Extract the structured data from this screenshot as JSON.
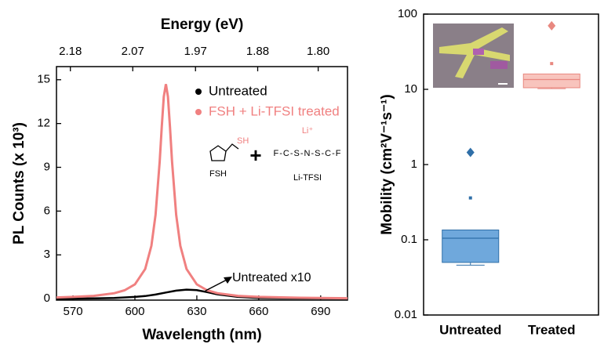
{
  "chart_data": [
    {
      "type": "line",
      "x_label": "Wavelength (nm)",
      "y_label": "PL Counts (x 10³)",
      "x2_label": "Energy (eV)",
      "xlim": [
        562,
        703
      ],
      "ylim": [
        -0.1,
        15.9
      ],
      "xticks": [
        570,
        600,
        630,
        660,
        690
      ],
      "yticks": [
        0,
        3,
        6,
        9,
        12,
        15
      ],
      "x2ticks": [
        2.18,
        2.07,
        1.97,
        1.88,
        {
          "value": 1.8,
          "label": "1.80"
        }
      ],
      "legend": "upper right",
      "series": [
        {
          "name": "Untreated",
          "color": "#000000",
          "x": [
            562,
            570,
            580,
            590,
            600,
            605,
            610,
            615,
            620,
            625,
            630,
            635,
            640,
            650,
            660,
            680,
            703
          ],
          "values": [
            0,
            0,
            0.02,
            0.05,
            0.12,
            0.18,
            0.28,
            0.42,
            0.55,
            0.62,
            0.58,
            0.45,
            0.3,
            0.12,
            0.05,
            0.02,
            0.01
          ]
        },
        {
          "name": "FSH + Li-TFSI treated",
          "color": "#f08080",
          "x": [
            562,
            570,
            580,
            590,
            595,
            600,
            605,
            608,
            610,
            612,
            613,
            614,
            615,
            616,
            617,
            618,
            620,
            622,
            625,
            630,
            635,
            640,
            650,
            660,
            680,
            703
          ],
          "values": [
            0.08,
            0.12,
            0.19,
            0.37,
            0.57,
            0.98,
            2.03,
            3.62,
            5.74,
            9.41,
            11.76,
            13.84,
            14.7,
            13.84,
            11.76,
            9.41,
            5.74,
            3.62,
            2.03,
            0.98,
            0.57,
            0.37,
            0.19,
            0.12,
            0.06,
            0.03
          ]
        }
      ],
      "annotations": [
        "Untreated x10",
        "SH",
        "FSH",
        "+",
        "Li⁺",
        "F-C-S-N-S-C-F",
        "Li-TFSI"
      ]
    },
    {
      "type": "box",
      "y_label": "Mobility (cm²V⁻¹s⁻¹)",
      "ylim": [
        0.01,
        100
      ],
      "log_scale": true,
      "yticks": [
        0.01,
        0.1,
        1,
        10,
        100
      ],
      "categories": [
        "Untreated",
        "Treated"
      ],
      "boxes": [
        {
          "color": "#6fa8dc",
          "edge": "#2f6fa8",
          "whisker_low": 0.046,
          "q1": 0.05,
          "median": 0.105,
          "q3": 0.135,
          "whisker_high": 0.135,
          "mean": 0.36,
          "outliers": [
            1.45
          ]
        },
        {
          "color": "#f8c4bd",
          "edge": "#e88880",
          "whisker_low": 10.2,
          "q1": 10.5,
          "median": 13.5,
          "q3": 16,
          "whisker_high": 16,
          "mean": 22,
          "outliers": [
            70
          ]
        }
      ]
    }
  ]
}
